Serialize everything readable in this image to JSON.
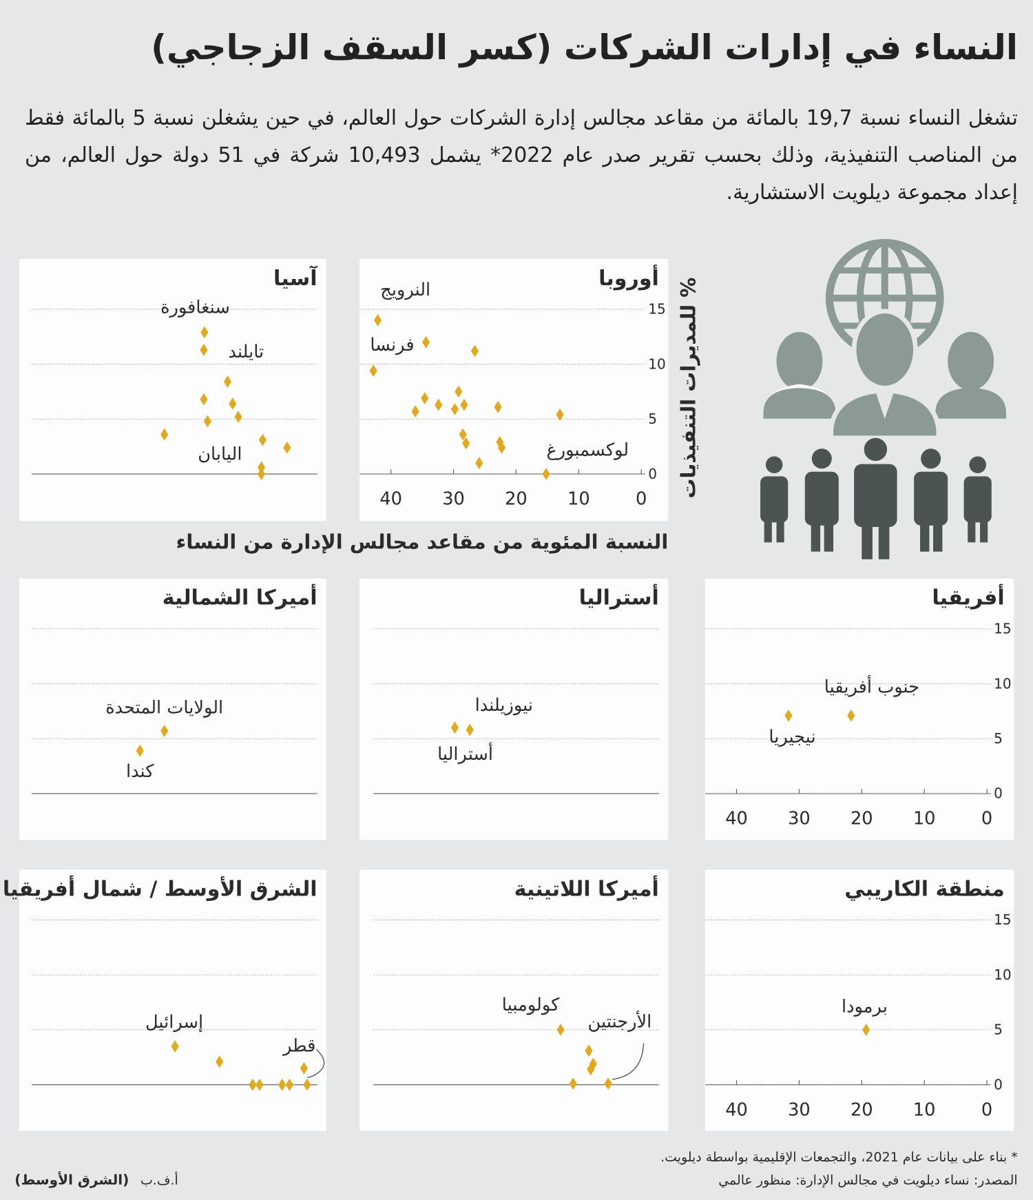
{
  "header": {
    "title": "النساء في إدارات الشركات (كسر السقف الزجاجي)",
    "intro": "تشغل النساء نسبة 19,7 بالمائة من مقاعد مجالس إدارة الشركات حول العالم، في حين يشغلن نسبة 5 بالمائة فقط من المناصب التنفيذية، وذلك بحسب تقرير صدر عام 2022* يشمل 10,493 شركة في 51 دولة حول العالم، من إعداد مجموعة ديلويت الاستشارية."
  },
  "y_axis_label": "% للمديرات التنفيذيات",
  "x_axis_label": "النسبة المئوية من مقاعد مجالس الإدارة من النساء",
  "chart_data": [
    {
      "type": "scatter",
      "title": "آسيا",
      "color": "#e2a91f",
      "xlim": [
        45,
        0
      ],
      "ylim": [
        0,
        17
      ],
      "ygrid": [
        5,
        10,
        15
      ],
      "x": [
        17.4,
        17.5,
        13.7,
        17.5,
        12.9,
        12.0,
        16.9,
        23.8,
        8.1,
        4.2,
        8.3,
        8.3
      ],
      "y": [
        12.9,
        11.3,
        8.4,
        6.8,
        6.4,
        5.2,
        4.8,
        3.6,
        3.1,
        2.4,
        0.6,
        0
      ],
      "point_labels": [
        "سنغافورة",
        "تايلند",
        null,
        null,
        null,
        null,
        null,
        null,
        null,
        null,
        "اليابان",
        null
      ]
    },
    {
      "type": "scatter",
      "title": "أوروبا",
      "color": "#e2a91f",
      "xlim": [
        45,
        0
      ],
      "ylim": [
        0,
        17
      ],
      "xticks": [
        0,
        10,
        20,
        30,
        40
      ],
      "yticks": [
        0,
        5,
        10,
        15
      ],
      "x": [
        42.1,
        34.4,
        26.6,
        42.8,
        34.6,
        32.4,
        36.1,
        29.2,
        28.3,
        29.8,
        22.9,
        13.0,
        28.5,
        28.0,
        22.6,
        22.3,
        25.9,
        15.2
      ],
      "y": [
        14.0,
        12.0,
        11.2,
        9.4,
        6.9,
        6.3,
        5.7,
        7.5,
        6.3,
        5.9,
        6.1,
        5.4,
        3.6,
        2.8,
        2.9,
        2.4,
        1.0,
        0
      ],
      "point_labels": [
        "النرويج",
        "فرنسا",
        null,
        null,
        null,
        null,
        null,
        null,
        null,
        null,
        null,
        null,
        null,
        null,
        null,
        null,
        null,
        "لوكسمبورغ"
      ]
    },
    {
      "type": "scatter",
      "title": "أميركا الشمالية",
      "color": "#e2a91f",
      "xlim": [
        45,
        0
      ],
      "ylim": [
        0,
        17
      ],
      "ygrid": [
        5,
        10,
        15
      ],
      "x": [
        23.8,
        27.7
      ],
      "y": [
        5.7,
        3.9
      ],
      "point_labels": [
        "الولايات المتحدة",
        "كندا"
      ]
    },
    {
      "type": "scatter",
      "title": "أستراليا",
      "color": "#e2a91f",
      "xlim": [
        45,
        0
      ],
      "ylim": [
        0,
        17
      ],
      "ygrid": [
        5,
        10,
        15
      ],
      "x": [
        32.0,
        29.6
      ],
      "y": [
        6.0,
        5.8
      ],
      "point_labels": [
        "نيوزيلندا",
        "أستراليا"
      ]
    },
    {
      "type": "scatter",
      "title": "أفريقيا",
      "color": "#e2a91f",
      "xlim": [
        45,
        0
      ],
      "ylim": [
        0,
        17
      ],
      "xticks": [
        0,
        10,
        20,
        30,
        40
      ],
      "yticks": [
        0,
        5,
        10,
        15
      ],
      "x": [
        21.7,
        31.7
      ],
      "y": [
        7.1,
        7.1
      ],
      "point_labels": [
        "جنوب أفريقيا",
        "نيجيريا"
      ]
    },
    {
      "type": "scatter",
      "title": "الشرق الأوسط / شمال أفريقيا",
      "color": "#e2a91f",
      "xlim": [
        45,
        0
      ],
      "ylim": [
        0,
        17
      ],
      "ygrid": [
        5,
        10,
        15
      ],
      "x": [
        22.1,
        15.0,
        1.5,
        9.7,
        8.6,
        5.0,
        3.8,
        1.0
      ],
      "y": [
        3.5,
        2.1,
        1.5,
        0,
        0,
        0,
        0,
        0
      ],
      "point_labels": [
        "إسرائيل",
        null,
        "قطر",
        null,
        null,
        null,
        null,
        null
      ]
    },
    {
      "type": "scatter",
      "title": "أميركا اللاتينية",
      "color": "#e2a91f",
      "xlim": [
        45,
        0
      ],
      "ylim": [
        0,
        17
      ],
      "ygrid": [
        5,
        10,
        15
      ],
      "x": [
        15.1,
        10.6,
        9.9,
        10.3,
        13.1,
        7.5
      ],
      "y": [
        5.0,
        3.1,
        1.9,
        1.4,
        0.1,
        0.1
      ],
      "point_labels": [
        "كولومبيا",
        null,
        null,
        null,
        null,
        "الأرجنتين"
      ]
    },
    {
      "type": "scatter",
      "title": "منطقة الكاريبي",
      "color": "#e2a91f",
      "xlim": [
        45,
        0
      ],
      "ylim": [
        0,
        17
      ],
      "xticks": [
        0,
        10,
        20,
        30,
        40
      ],
      "yticks": [
        0,
        5,
        10,
        15
      ],
      "x": [
        19.3
      ],
      "y": [
        5.0
      ],
      "point_labels": [
        "برمودا"
      ]
    }
  ],
  "footer": {
    "note": "* بناء على بيانات عام 2021، والتجمعات الإقليمية بواسطة ديلويت.",
    "source": "المصدر: نساء ديلويت في مجالس الإدارة: منظور عالمي",
    "agency": "أ.ف.ب",
    "publisher": "(الشرق الأوسط)"
  }
}
